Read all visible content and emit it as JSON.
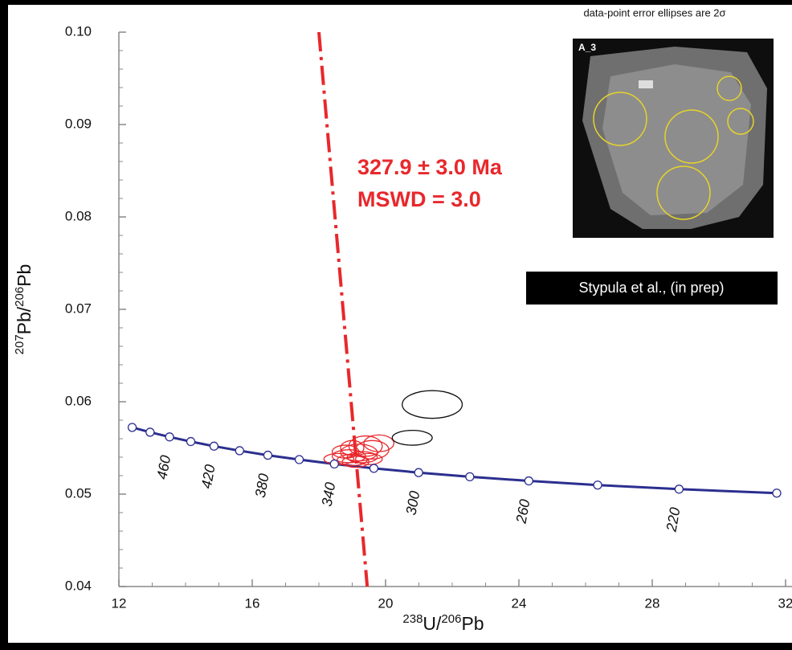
{
  "chart_data": {
    "type": "concordia",
    "note": "data-point error ellipses are 2σ",
    "xlabel_parts": [
      "238",
      "U/",
      "206",
      "Pb"
    ],
    "ylabel_parts": [
      "207",
      "Pb/",
      "206",
      "Pb"
    ],
    "xlim": [
      12,
      32
    ],
    "ylim": [
      0.04,
      0.1
    ],
    "xticks": [
      12,
      16,
      20,
      24,
      28,
      32
    ],
    "yticks": [
      0.04,
      0.05,
      0.06,
      0.07,
      0.08,
      0.09,
      {
        "value": 0.1,
        "label": "0.10"
      }
    ],
    "minor_xticks": [
      13,
      14,
      15,
      17,
      18,
      19,
      21,
      22,
      23,
      25,
      26,
      27,
      29,
      30,
      31
    ],
    "minor_yticks": [
      0.042,
      0.044,
      0.046,
      0.048,
      0.052,
      0.054,
      0.056,
      0.058,
      0.062,
      0.064,
      0.066,
      0.068,
      0.072,
      0.074,
      0.076,
      0.078,
      0.082,
      0.084,
      0.086,
      0.088,
      0.092,
      0.094,
      0.096,
      0.098
    ],
    "concordia": {
      "color": "#2b2f8f",
      "x": [
        12.399,
        12.936,
        13.52,
        14.157,
        14.854,
        15.621,
        16.469,
        17.411,
        18.464,
        19.649,
        20.992,
        22.527,
        24.297,
        26.363,
        28.804,
        31.735
      ],
      "y": [
        0.05722,
        0.0567,
        0.05619,
        0.05569,
        0.05519,
        0.0547,
        0.05421,
        0.05374,
        0.05326,
        0.05279,
        0.05233,
        0.05188,
        0.05143,
        0.05098,
        0.05054,
        0.05011
      ],
      "point_labels": [
        null,
        null,
        460,
        null,
        420,
        null,
        380,
        null,
        340,
        null,
        300,
        null,
        260,
        null,
        220,
        null
      ]
    },
    "series": [
      {
        "color": "#e8282c",
        "x": [
          18.6,
          18.9,
          19.0,
          19.2,
          19.4,
          19.6,
          19.1,
          19.3,
          18.8,
          19.5,
          19.8,
          19.0
        ],
        "y": [
          0.0538,
          0.0541,
          0.0537,
          0.0545,
          0.0552,
          0.0548,
          0.0535,
          0.054,
          0.0546,
          0.0538,
          0.0555,
          0.055
        ],
        "x_err": [
          0.45,
          0.5,
          0.45,
          0.55,
          0.5,
          0.5,
          0.4,
          0.45,
          0.4,
          0.4,
          0.45,
          0.35
        ],
        "y_err": [
          0.0006,
          0.0007,
          0.0006,
          0.0009,
          0.0011,
          0.001,
          0.0006,
          0.0006,
          0.0007,
          0.0006,
          0.0009,
          0.0008
        ]
      },
      {
        "color": "#111111",
        "x": [
          21.4,
          20.8
        ],
        "y": [
          0.0597,
          0.0561
        ],
        "x_err": [
          0.9,
          0.6
        ],
        "y_err": [
          0.0015,
          0.0008
        ]
      }
    ],
    "discordia": {
      "color": "#e8282c",
      "x": [
        18.0,
        19.45
      ],
      "y": [
        0.1,
        0.04
      ]
    },
    "annotations": [
      "327.9 ± 3.0 Ma",
      "MSWD = 3.0"
    ],
    "inset_label": "A_3",
    "credit": "Stypula et al., (in prep)"
  }
}
